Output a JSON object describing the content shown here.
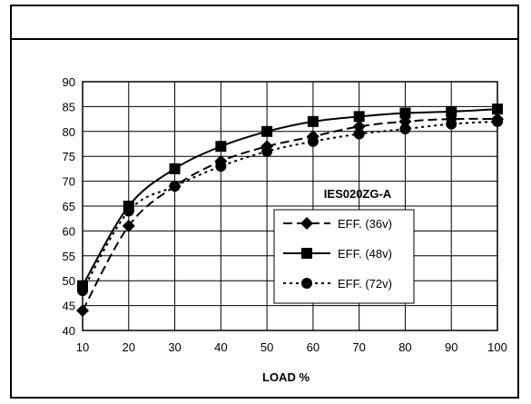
{
  "chart_data": {
    "type": "line",
    "x": [
      10,
      20,
      30,
      40,
      50,
      60,
      70,
      80,
      90,
      100
    ],
    "xlim": [
      10,
      100
    ],
    "ylim": [
      40,
      90
    ],
    "x_ticks": [
      10,
      20,
      30,
      40,
      50,
      60,
      70,
      80,
      90,
      100
    ],
    "y_ticks": [
      40,
      45,
      50,
      55,
      60,
      65,
      70,
      75,
      80,
      85,
      90
    ],
    "xlabel": "LOAD %",
    "ylabel": "",
    "title": "",
    "annotation": "IES020ZG-A",
    "grid": true,
    "legend_placement": "center-right",
    "series": [
      {
        "name": "EFF. (36v)",
        "marker": "diamond",
        "dash": "long-dash",
        "color": "#000000",
        "values": [
          44,
          61,
          69,
          74,
          77,
          79,
          81,
          82,
          82.5,
          82.5
        ]
      },
      {
        "name": "EFF. (48v)",
        "marker": "square",
        "dash": "solid",
        "color": "#000000",
        "values": [
          49,
          65,
          72.5,
          77,
          80,
          82,
          83,
          83.7,
          84,
          84.5
        ]
      },
      {
        "name": "EFF. (72v)",
        "marker": "circle",
        "dash": "short-dash",
        "color": "#000000",
        "values": [
          48,
          64,
          69,
          73,
          76,
          78,
          79.5,
          80.5,
          81.5,
          82
        ]
      }
    ]
  }
}
